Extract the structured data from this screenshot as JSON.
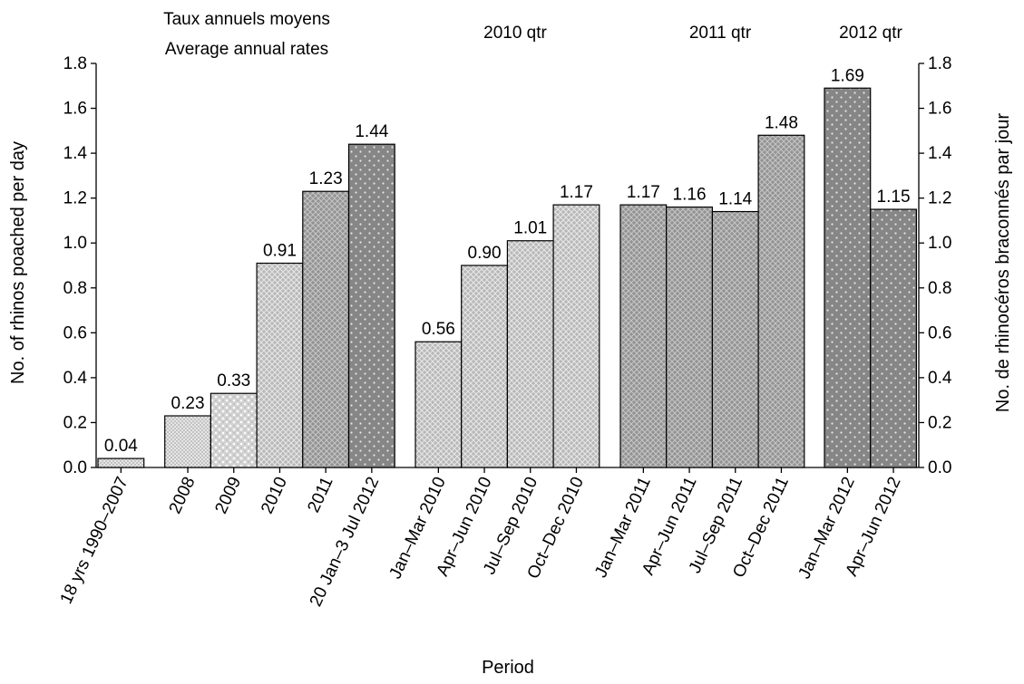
{
  "chart_data": {
    "type": "bar",
    "xlabel": "Period",
    "ylabel": "No. of rhinos poached per day",
    "ylabel_right": "No. de rhinocéros braconnés par jour",
    "ylim": [
      0,
      1.8
    ],
    "yticks": [
      "0.0",
      "0.2",
      "0.4",
      "0.6",
      "0.8",
      "1.0",
      "1.2",
      "1.4",
      "1.6",
      "1.8"
    ],
    "grid": false,
    "groups": [
      {
        "header": [
          "Taux annuels moyens",
          "Average annual rates"
        ],
        "bars": [
          {
            "category": "18 yrs 1990–2007",
            "value": 0.04,
            "label": "0.04",
            "pattern": "fine-dots"
          },
          {
            "category": "2008",
            "value": 0.23,
            "label": "0.23",
            "pattern": "fine-dots"
          },
          {
            "category": "2009",
            "value": 0.33,
            "label": "0.33",
            "pattern": "light-crosshatch"
          },
          {
            "category": "2010",
            "value": 0.91,
            "label": "0.91",
            "pattern": "medium-crosshatch"
          },
          {
            "category": "2011",
            "value": 1.23,
            "label": "1.23",
            "pattern": "dark-crosshatch"
          },
          {
            "category": "20 Jan–3 Jul 2012",
            "value": 1.44,
            "label": "1.44",
            "pattern": "dark-dots"
          }
        ]
      },
      {
        "header": [
          "2010 qtr"
        ],
        "bars": [
          {
            "category": "Jan–Mar 2010",
            "value": 0.56,
            "label": "0.56",
            "pattern": "medium-crosshatch"
          },
          {
            "category": "Apr–Jun 2010",
            "value": 0.9,
            "label": "0.90",
            "pattern": "medium-crosshatch"
          },
          {
            "category": "Jul–Sep 2010",
            "value": 1.01,
            "label": "1.01",
            "pattern": "medium-crosshatch"
          },
          {
            "category": "Oct–Dec 2010",
            "value": 1.17,
            "label": "1.17",
            "pattern": "medium-crosshatch"
          }
        ]
      },
      {
        "header": [
          "2011 qtr"
        ],
        "bars": [
          {
            "category": "Jan–Mar 2011",
            "value": 1.17,
            "label": "1.17",
            "pattern": "dark-crosshatch"
          },
          {
            "category": "Apr–Jun 2011",
            "value": 1.16,
            "label": "1.16",
            "pattern": "dark-crosshatch"
          },
          {
            "category": "Jul–Sep 2011",
            "value": 1.14,
            "label": "1.14",
            "pattern": "dark-crosshatch"
          },
          {
            "category": "Oct–Dec 2011",
            "value": 1.48,
            "label": "1.48",
            "pattern": "dark-crosshatch"
          }
        ]
      },
      {
        "header": [
          "2012 qtr"
        ],
        "bars": [
          {
            "category": "Jan–Mar 2012",
            "value": 1.69,
            "label": "1.69",
            "pattern": "dark-dots"
          },
          {
            "category": "Apr–Jun 2012",
            "value": 1.15,
            "label": "1.15",
            "pattern": "dark-dots"
          }
        ]
      }
    ],
    "colors": {
      "fine-dots": "#e3e3e3",
      "light-crosshatch": "#cfcfcf",
      "medium-crosshatch": "#b4b4b4",
      "dark-crosshatch": "#909090",
      "dark-dots": "#858585"
    }
  }
}
